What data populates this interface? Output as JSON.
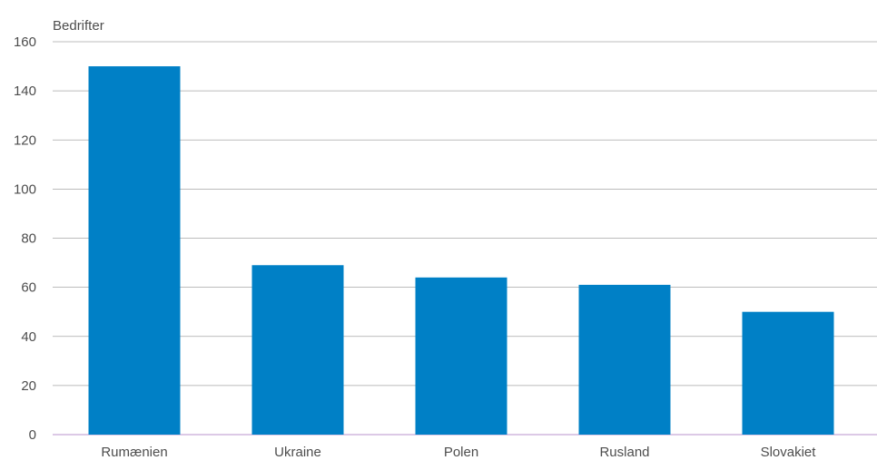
{
  "chart_data": {
    "type": "bar",
    "ylabel": "Bedrifter",
    "categories": [
      "Rumænien",
      "Ukraine",
      "Polen",
      "Rusland",
      "Slovakiet"
    ],
    "values": [
      150,
      69,
      64,
      61,
      50
    ],
    "ylim": [
      0,
      160
    ],
    "yticks": [
      0,
      20,
      40,
      60,
      80,
      100,
      120,
      140,
      160
    ],
    "grid": true,
    "legend": "none",
    "colors": {
      "bar": "#0080c6",
      "grid": "#a6a6a6",
      "baseline": "#c6a9d6",
      "text": "#4d4d4d"
    }
  }
}
